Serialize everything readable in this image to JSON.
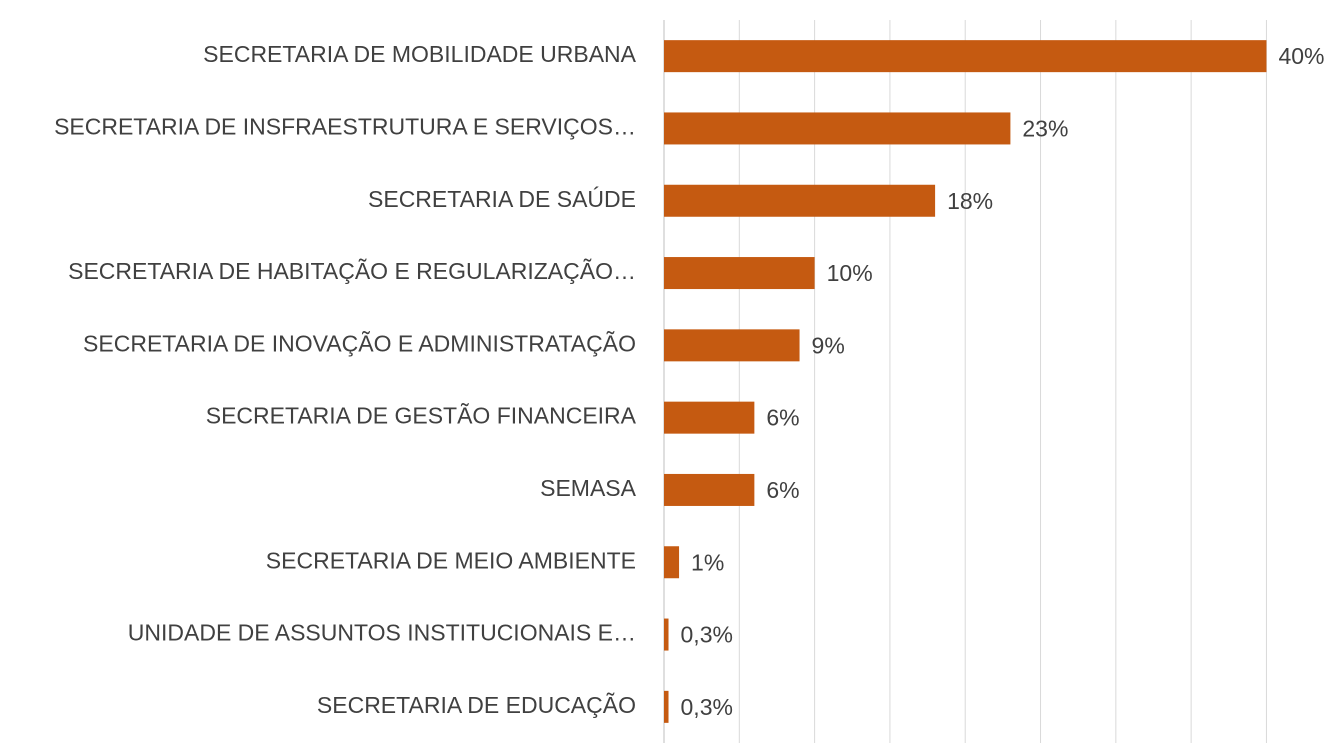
{
  "chart_data": {
    "type": "bar",
    "orientation": "horizontal",
    "categories": [
      "SECRETARIA DE MOBILIDADE URBANA",
      "SECRETARIA DE INSFRAESTRUTURA E SERVIÇOS…",
      "SECRETARIA DE SAÚDE",
      "SECRETARIA DE HABITAÇÃO E REGULARIZAÇÃO…",
      "SECRETARIA DE INOVAÇÃO E ADMINISTRATAÇÃO",
      "SECRETARIA DE GESTÃO FINANCEIRA",
      "SEMASA",
      "SECRETARIA DE MEIO AMBIENTE",
      "UNIDADE DE ASSUNTOS INSTITUCIONAIS E…",
      "SECRETARIA DE EDUCAÇÃO"
    ],
    "values": [
      40,
      23,
      18,
      10,
      9,
      6,
      6,
      1,
      0.3,
      0.3
    ],
    "value_labels": [
      "40%",
      "23%",
      "18%",
      "10%",
      "9%",
      "6%",
      "6%",
      "1%",
      "0,3%",
      "0,3%"
    ],
    "color": "#c55a11",
    "xlim": [
      0,
      40.9
    ],
    "xticks": [
      0,
      5,
      10,
      15,
      20,
      25,
      30,
      35,
      40
    ],
    "grid": true
  }
}
